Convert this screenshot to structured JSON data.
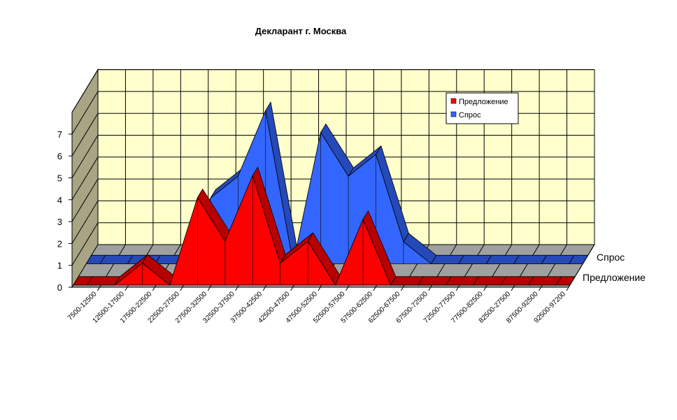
{
  "chart_data": {
    "type": "area",
    "title": "Декларант г. Москва",
    "categories": [
      "7500-12500",
      "12500-17500",
      "17500-22500",
      "22500-27500",
      "27500-32500",
      "32500-37500",
      "37500-42500",
      "42500-47500",
      "47500-52500",
      "52500-57500",
      "57500-62500",
      "62500-67500",
      "67500-72500",
      "72500-77500",
      "77500-82500",
      "82500-27500",
      "87500-92500",
      "92500-97200"
    ],
    "series": [
      {
        "name": "Предложение",
        "color": "#ff0000",
        "values": [
          0,
          0,
          1,
          0,
          4,
          2,
          5,
          1,
          2,
          0,
          3,
          0,
          0,
          0,
          0,
          0,
          0,
          0
        ]
      },
      {
        "name": "Спрос",
        "color": "#3366ff",
        "values": [
          0,
          0,
          0,
          0,
          3,
          4,
          7,
          0,
          6,
          4,
          5,
          1,
          0,
          0,
          0,
          0,
          0,
          0
        ]
      }
    ],
    "yticks": [
      "0",
      "1",
      "2",
      "3",
      "4",
      "5",
      "6",
      "7"
    ],
    "ylim": [
      0,
      8
    ],
    "depth_labels": [
      "Спрос",
      "Предложение"
    ],
    "legend": {
      "position": "top-right",
      "entries": [
        "Предложение",
        "Спрос"
      ]
    },
    "grid": true
  }
}
